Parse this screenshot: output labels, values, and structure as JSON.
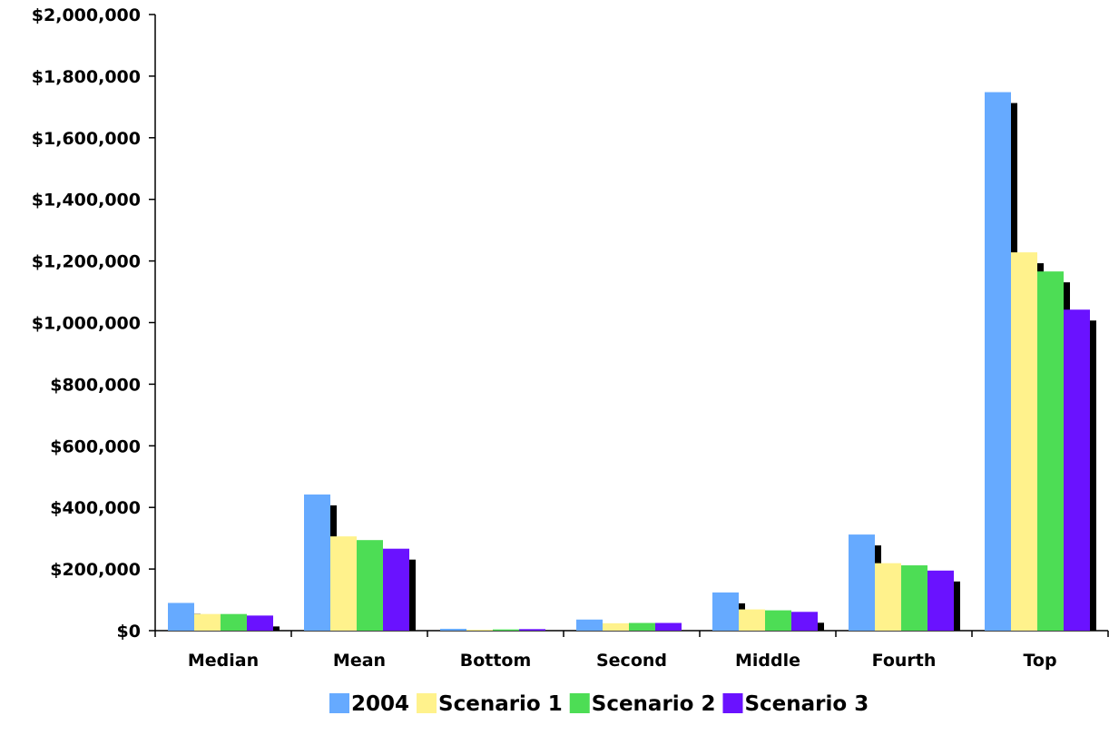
{
  "chart_data": {
    "type": "bar",
    "title": "",
    "xlabel": "",
    "ylabel": "",
    "ylim": [
      0,
      2000000
    ],
    "y_ticks": [
      0,
      200000,
      400000,
      600000,
      800000,
      1000000,
      1200000,
      1400000,
      1600000,
      1800000,
      2000000
    ],
    "y_tick_labels": [
      "$0",
      "$200,000",
      "$400,000",
      "$600,000",
      "$800,000",
      "$1,000,000",
      "$1,200,000",
      "$1,400,000",
      "$1,600,000",
      "$1,800,000",
      "$2,000,000"
    ],
    "categories": [
      "Median",
      "Mean",
      "Bottom",
      "Second",
      "Middle",
      "Fourth",
      "Top"
    ],
    "series": [
      {
        "name": "2004",
        "color": "#66aaff",
        "values": [
          90000,
          442000,
          6000,
          36000,
          124000,
          312000,
          1748000
        ]
      },
      {
        "name": "Scenario 1",
        "color": "#fff28c",
        "values": [
          54000,
          306000,
          3000,
          24000,
          69000,
          219000,
          1228000
        ]
      },
      {
        "name": "Scenario 2",
        "color": "#4ddd55",
        "values": [
          54000,
          294000,
          4000,
          25000,
          66000,
          212000,
          1166000
        ]
      },
      {
        "name": "Scenario 3",
        "color": "#6a12ff",
        "values": [
          49000,
          266000,
          5000,
          25000,
          61000,
          195000,
          1042000
        ]
      }
    ],
    "grid": false,
    "legend_position": "bottom",
    "bar_shadow_color": "#000000"
  }
}
